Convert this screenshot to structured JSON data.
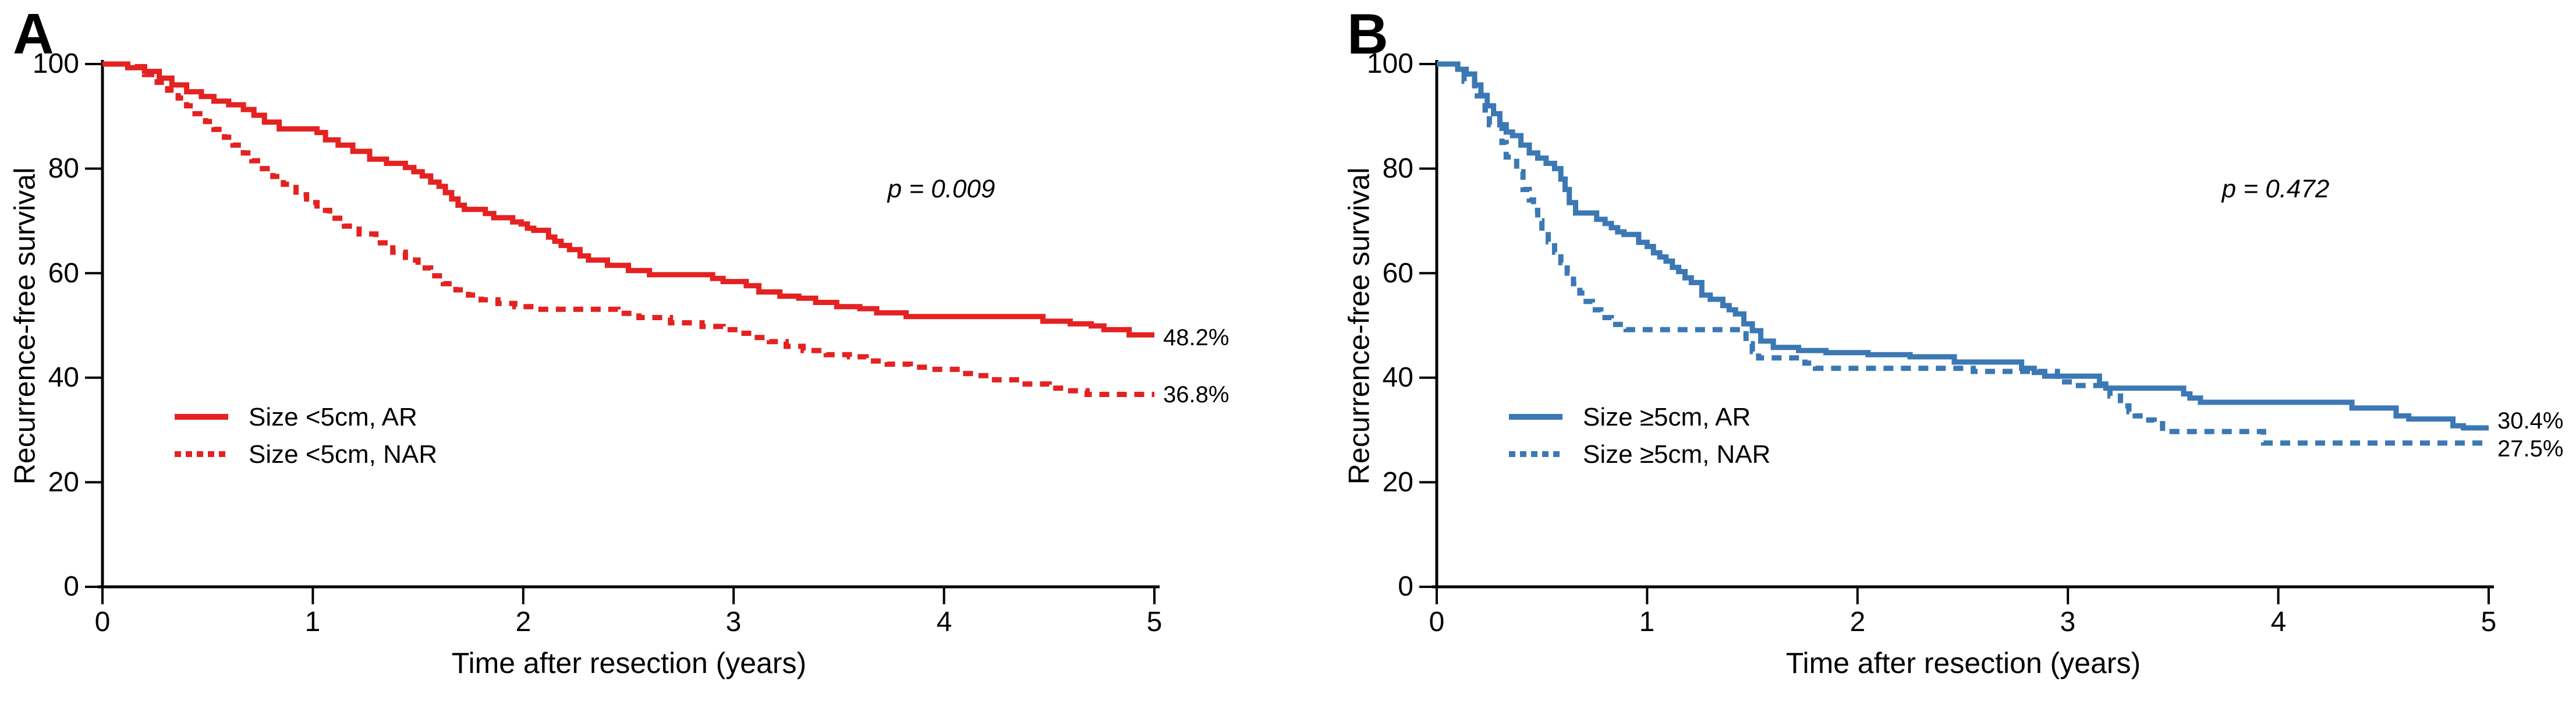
{
  "figure": {
    "background": "#ffffff",
    "axis_color": "#000000",
    "xlabel": "Time after resection (years)",
    "ylabel": "Recurrence-free survival"
  },
  "panels": [
    {
      "letter": "A",
      "ylabel": "Recurrence-free survival",
      "xlabel": "Time after resection (years)",
      "yticks": [
        "100",
        "80",
        "60",
        "40",
        "20",
        "0"
      ],
      "xticks": [
        "0",
        "1",
        "2",
        "3",
        "4",
        "5"
      ],
      "p_label": "p = 0.009",
      "color": "#e32221",
      "legend": [
        {
          "label": "Size <5cm, AR",
          "style": "solid"
        },
        {
          "label": "Size <5cm, NAR",
          "style": "dotted"
        }
      ],
      "end_labels": [
        "48.2%",
        "36.8%"
      ]
    },
    {
      "letter": "B",
      "ylabel": "Recurrence-free survival",
      "xlabel": "Time after resection (years)",
      "yticks": [
        "100",
        "80",
        "60",
        "40",
        "20",
        "0"
      ],
      "xticks": [
        "0",
        "1",
        "2",
        "3",
        "4",
        "5"
      ],
      "p_label": "p = 0.472",
      "color": "#3b78b4",
      "legend": [
        {
          "label": "Size ≥5cm, AR",
          "style": "solid"
        },
        {
          "label": "Size ≥5cm, NAR",
          "style": "dotted"
        }
      ],
      "end_labels": [
        "30.4%",
        "27.5%"
      ]
    }
  ],
  "chart_data": [
    {
      "type": "line",
      "title": "A",
      "xlabel": "Time after resection (years)",
      "ylabel": "Recurrence-free survival",
      "xlim": [
        0,
        5
      ],
      "ylim": [
        0,
        100
      ],
      "xticks": [
        0,
        1,
        2,
        3,
        4,
        5
      ],
      "yticks": [
        0,
        20,
        40,
        60,
        80,
        100
      ],
      "grid": false,
      "legend_position": "lower-left-inside",
      "annotation": "p = 0.009",
      "series": [
        {
          "name": "Size <5cm, AR",
          "style": "solid",
          "color": "#e32221",
          "final_label": "48.2%",
          "points": [
            [
              0,
              100
            ],
            [
              0.12,
              99.3
            ],
            [
              0.2,
              98.6
            ],
            [
              0.27,
              97.3
            ],
            [
              0.33,
              96
            ],
            [
              0.4,
              94.7
            ],
            [
              0.47,
              93.8
            ],
            [
              0.53,
              92.9
            ],
            [
              0.6,
              92.2
            ],
            [
              0.67,
              91.3
            ],
            [
              0.72,
              90.2
            ],
            [
              0.77,
              88.9
            ],
            [
              0.84,
              87.6
            ],
            [
              1.02,
              86.9
            ],
            [
              1.06,
              85.5
            ],
            [
              1.12,
              84.5
            ],
            [
              1.19,
              83.3
            ],
            [
              1.27,
              81.8
            ],
            [
              1.35,
              81
            ],
            [
              1.44,
              80.2
            ],
            [
              1.48,
              79.4
            ],
            [
              1.52,
              78.6
            ],
            [
              1.56,
              77.4
            ],
            [
              1.6,
              76.6
            ],
            [
              1.63,
              75.4
            ],
            [
              1.66,
              74.2
            ],
            [
              1.69,
              73
            ],
            [
              1.72,
              72.2
            ],
            [
              1.82,
              71.4
            ],
            [
              1.86,
              70.6
            ],
            [
              1.95,
              69.8
            ],
            [
              1.99,
              69.4
            ],
            [
              2.02,
              68.6
            ],
            [
              2.05,
              68.2
            ],
            [
              2.12,
              66.9
            ],
            [
              2.15,
              66.1
            ],
            [
              2.18,
              65.3
            ],
            [
              2.22,
              64.5
            ],
            [
              2.27,
              63.3
            ],
            [
              2.31,
              62.5
            ],
            [
              2.4,
              61.5
            ],
            [
              2.5,
              60.5
            ],
            [
              2.6,
              59.7
            ],
            [
              2.9,
              59
            ],
            [
              2.95,
              58.4
            ],
            [
              3.06,
              57.6
            ],
            [
              3.12,
              56.4
            ],
            [
              3.22,
              55.6
            ],
            [
              3.31,
              55.2
            ],
            [
              3.39,
              54.4
            ],
            [
              3.49,
              53.6
            ],
            [
              3.6,
              53.2
            ],
            [
              3.68,
              52.4
            ],
            [
              3.82,
              51.7
            ],
            [
              4.47,
              50.8
            ],
            [
              4.6,
              50.3
            ],
            [
              4.7,
              49.9
            ],
            [
              4.76,
              49.2
            ],
            [
              4.88,
              48.2
            ],
            [
              5,
              48.2
            ]
          ]
        },
        {
          "name": "Size <5cm, NAR",
          "style": "dotted",
          "color": "#e32221",
          "final_label": "36.8%",
          "points": [
            [
              0,
              100
            ],
            [
              0.15,
              99.5
            ],
            [
              0.2,
              98
            ],
            [
              0.26,
              96.5
            ],
            [
              0.31,
              95
            ],
            [
              0.36,
              93.5
            ],
            [
              0.4,
              92
            ],
            [
              0.44,
              90.5
            ],
            [
              0.49,
              89
            ],
            [
              0.53,
              87.5
            ],
            [
              0.58,
              86
            ],
            [
              0.62,
              84.5
            ],
            [
              0.67,
              83
            ],
            [
              0.71,
              81.5
            ],
            [
              0.76,
              80
            ],
            [
              0.81,
              78.5
            ],
            [
              0.86,
              77
            ],
            [
              0.92,
              75
            ],
            [
              0.97,
              73.5
            ],
            [
              1.02,
              72
            ],
            [
              1.08,
              70.5
            ],
            [
              1.15,
              69
            ],
            [
              1.22,
              67.5
            ],
            [
              1.3,
              65.8
            ],
            [
              1.38,
              64
            ],
            [
              1.44,
              62.5
            ],
            [
              1.5,
              61
            ],
            [
              1.56,
              59.5
            ],
            [
              1.62,
              58
            ],
            [
              1.68,
              56.8
            ],
            [
              1.74,
              55.8
            ],
            [
              1.8,
              54.9
            ],
            [
              1.88,
              54.2
            ],
            [
              1.96,
              53.6
            ],
            [
              2.05,
              53.1
            ],
            [
              2.45,
              52.3
            ],
            [
              2.55,
              51.5
            ],
            [
              2.7,
              50.5
            ],
            [
              2.85,
              49.8
            ],
            [
              2.95,
              49.2
            ],
            [
              3.02,
              48.5
            ],
            [
              3.09,
              47.7
            ],
            [
              3.17,
              46.9
            ],
            [
              3.25,
              46
            ],
            [
              3.33,
              45.2
            ],
            [
              3.44,
              44.4
            ],
            [
              3.55,
              44
            ],
            [
              3.63,
              43.2
            ],
            [
              3.73,
              42.6
            ],
            [
              3.84,
              42
            ],
            [
              3.94,
              41.6
            ],
            [
              4.08,
              40.8
            ],
            [
              4.16,
              40.4
            ],
            [
              4.24,
              39.6
            ],
            [
              4.37,
              38.8
            ],
            [
              4.5,
              38
            ],
            [
              4.58,
              37.5
            ],
            [
              4.68,
              36.8
            ],
            [
              5,
              36.8
            ]
          ]
        }
      ]
    },
    {
      "type": "line",
      "title": "B",
      "xlabel": "Time after resection (years)",
      "ylabel": "Recurrence-free survival",
      "xlim": [
        0,
        5
      ],
      "ylim": [
        0,
        100
      ],
      "xticks": [
        0,
        1,
        2,
        3,
        4,
        5
      ],
      "yticks": [
        0,
        20,
        40,
        60,
        80,
        100
      ],
      "grid": false,
      "legend_position": "lower-left-inside",
      "annotation": "p = 0.472",
      "series": [
        {
          "name": "Size ≥5cm, AR",
          "style": "solid",
          "color": "#3b78b4",
          "final_label": "30.4%",
          "points": [
            [
              0,
              100
            ],
            [
              0.1,
              99
            ],
            [
              0.14,
              98.1
            ],
            [
              0.18,
              96
            ],
            [
              0.21,
              94
            ],
            [
              0.24,
              92
            ],
            [
              0.27,
              90.5
            ],
            [
              0.3,
              88.4
            ],
            [
              0.33,
              87
            ],
            [
              0.36,
              86.3
            ],
            [
              0.4,
              84.5
            ],
            [
              0.44,
              83
            ],
            [
              0.48,
              82
            ],
            [
              0.52,
              81
            ],
            [
              0.56,
              80
            ],
            [
              0.59,
              78
            ],
            [
              0.61,
              76
            ],
            [
              0.63,
              73.5
            ],
            [
              0.66,
              71.5
            ],
            [
              0.76,
              70.3
            ],
            [
              0.8,
              69.5
            ],
            [
              0.83,
              68.7
            ],
            [
              0.86,
              67.9
            ],
            [
              0.89,
              67.4
            ],
            [
              0.96,
              65.9
            ],
            [
              1,
              65.1
            ],
            [
              1.03,
              63.9
            ],
            [
              1.06,
              63.1
            ],
            [
              1.09,
              62.3
            ],
            [
              1.12,
              61.1
            ],
            [
              1.15,
              60.3
            ],
            [
              1.18,
              59.1
            ],
            [
              1.21,
              58.2
            ],
            [
              1.26,
              55.8
            ],
            [
              1.3,
              55
            ],
            [
              1.36,
              53.8
            ],
            [
              1.39,
              53
            ],
            [
              1.42,
              52.2
            ],
            [
              1.46,
              50.3
            ],
            [
              1.5,
              49
            ],
            [
              1.54,
              47
            ],
            [
              1.6,
              45.8
            ],
            [
              1.72,
              45.2
            ],
            [
              1.85,
              44.8
            ],
            [
              2.05,
              44.4
            ],
            [
              2.25,
              44
            ],
            [
              2.46,
              43
            ],
            [
              2.78,
              41.8
            ],
            [
              2.84,
              41
            ],
            [
              2.89,
              40.3
            ],
            [
              3.15,
              38.8
            ],
            [
              3.18,
              38
            ],
            [
              3.55,
              36.9
            ],
            [
              3.58,
              36.1
            ],
            [
              3.63,
              35.3
            ],
            [
              4.35,
              34.2
            ],
            [
              4.56,
              32.7
            ],
            [
              4.62,
              32.1
            ],
            [
              4.83,
              30.8
            ],
            [
              4.88,
              30.4
            ],
            [
              5,
              30.4
            ]
          ]
        },
        {
          "name": "Size ≥5cm, NAR",
          "style": "dotted",
          "color": "#3b78b4",
          "final_label": "27.5%",
          "points": [
            [
              0,
              100
            ],
            [
              0.1,
              98.5
            ],
            [
              0.13,
              96.7
            ],
            [
              0.18,
              93.9
            ],
            [
              0.23,
              91.2
            ],
            [
              0.25,
              88.4
            ],
            [
              0.31,
              85
            ],
            [
              0.33,
              82.2
            ],
            [
              0.38,
              79.4
            ],
            [
              0.41,
              76
            ],
            [
              0.44,
              74
            ],
            [
              0.46,
              72
            ],
            [
              0.48,
              70
            ],
            [
              0.5,
              68
            ],
            [
              0.53,
              66
            ],
            [
              0.56,
              64
            ],
            [
              0.59,
              62
            ],
            [
              0.62,
              60
            ],
            [
              0.65,
              58
            ],
            [
              0.68,
              56.2
            ],
            [
              0.71,
              54.6
            ],
            [
              0.74,
              53
            ],
            [
              0.78,
              51.5
            ],
            [
              0.83,
              50.2
            ],
            [
              0.9,
              49.2
            ],
            [
              1.47,
              46.5
            ],
            [
              1.5,
              45
            ],
            [
              1.53,
              43.8
            ],
            [
              1.75,
              42.8
            ],
            [
              1.8,
              41.8
            ],
            [
              2.55,
              41.2
            ],
            [
              2.95,
              39.2
            ],
            [
              3.05,
              38.5
            ],
            [
              3.2,
              36.5
            ],
            [
              3.25,
              34.6
            ],
            [
              3.29,
              33.5
            ],
            [
              3.32,
              32.7
            ],
            [
              3.37,
              31.9
            ],
            [
              3.41,
              31.2
            ],
            [
              3.45,
              29.7
            ],
            [
              3.93,
              27.5
            ],
            [
              5,
              27.5
            ]
          ]
        }
      ]
    }
  ]
}
